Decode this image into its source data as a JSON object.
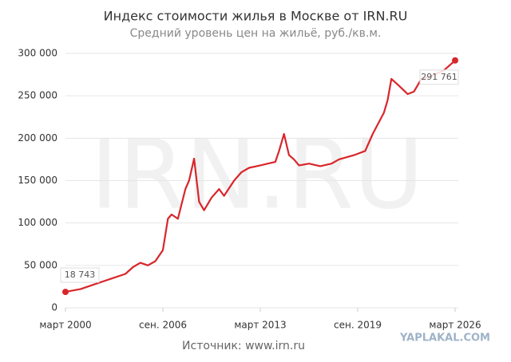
{
  "chart_data": {
    "type": "line",
    "title": "Индекс стоимости жилья в Москве от IRN.RU",
    "subtitle": "Средний уровень цен на жильё, руб./кв.м.",
    "source": "Источник: www.irn.ru",
    "watermark": "IRN.RU",
    "corner_watermark": "YAPLAKAL.COM",
    "x": [
      "2000-03",
      "2001-03",
      "2002-03",
      "2003-03",
      "2004-03",
      "2004-09",
      "2005-03",
      "2005-09",
      "2006-03",
      "2006-09",
      "2007-01",
      "2007-04",
      "2007-09",
      "2008-03",
      "2008-06",
      "2008-10",
      "2009-02",
      "2009-06",
      "2009-12",
      "2010-06",
      "2010-10",
      "2011-06",
      "2011-12",
      "2012-06",
      "2013-03",
      "2013-09",
      "2014-03",
      "2014-06",
      "2014-10",
      "2015-02",
      "2015-06",
      "2015-10",
      "2016-06",
      "2017-03",
      "2017-12",
      "2018-06",
      "2019-06",
      "2020-03",
      "2020-09",
      "2021-06",
      "2021-09",
      "2021-12",
      "2022-06",
      "2023-01",
      "2023-06",
      "2023-12",
      "2024-06",
      "2025-06",
      "2026-03"
    ],
    "series": [
      {
        "name": "Индекс стоимости жилья",
        "color": "#d8262b",
        "values": [
          18743,
          22000,
          28000,
          34000,
          40000,
          48000,
          53000,
          50000,
          55000,
          68000,
          105000,
          110000,
          105000,
          140000,
          150000,
          176000,
          125000,
          115000,
          130000,
          140000,
          132000,
          150000,
          160000,
          165000,
          168000,
          170000,
          172000,
          185000,
          205000,
          180000,
          175000,
          168000,
          170000,
          167000,
          170000,
          175000,
          180000,
          185000,
          205000,
          230000,
          245000,
          270000,
          262000,
          252000,
          255000,
          270000,
          272000,
          280000,
          291761
        ],
        "value_labels": [
          "18 743",
          null,
          null,
          null,
          null,
          null,
          null,
          null,
          null,
          null,
          null,
          null,
          null,
          null,
          null,
          null,
          null,
          null,
          null,
          null,
          null,
          null,
          null,
          null,
          null,
          null,
          null,
          null,
          null,
          null,
          null,
          null,
          null,
          null,
          null,
          null,
          null,
          null,
          null,
          null,
          null,
          null,
          null,
          null,
          null,
          null,
          null,
          null,
          "291 761"
        ]
      }
    ],
    "xlim": [
      "2000-03",
      "2026-03"
    ],
    "xticks": [
      {
        "value": "2000-03",
        "label": "март 2000"
      },
      {
        "value": "2006-09",
        "label": "сен. 2006"
      },
      {
        "value": "2013-03",
        "label": "март 2013"
      },
      {
        "value": "2019-09",
        "label": "сен. 2019"
      },
      {
        "value": "2026-03",
        "label": "март 2026"
      }
    ],
    "ylim": [
      0,
      300000
    ],
    "yticks": [
      0,
      {
        "value": 50000,
        "label": "50 000"
      },
      {
        "value": 100000,
        "label": "100 000"
      },
      {
        "value": 150000,
        "label": "150 000"
      },
      {
        "value": 200000,
        "label": "200 000"
      },
      {
        "value": 250000,
        "label": "250 000"
      },
      {
        "value": 300000,
        "label": "300 000"
      }
    ],
    "grid": true
  }
}
